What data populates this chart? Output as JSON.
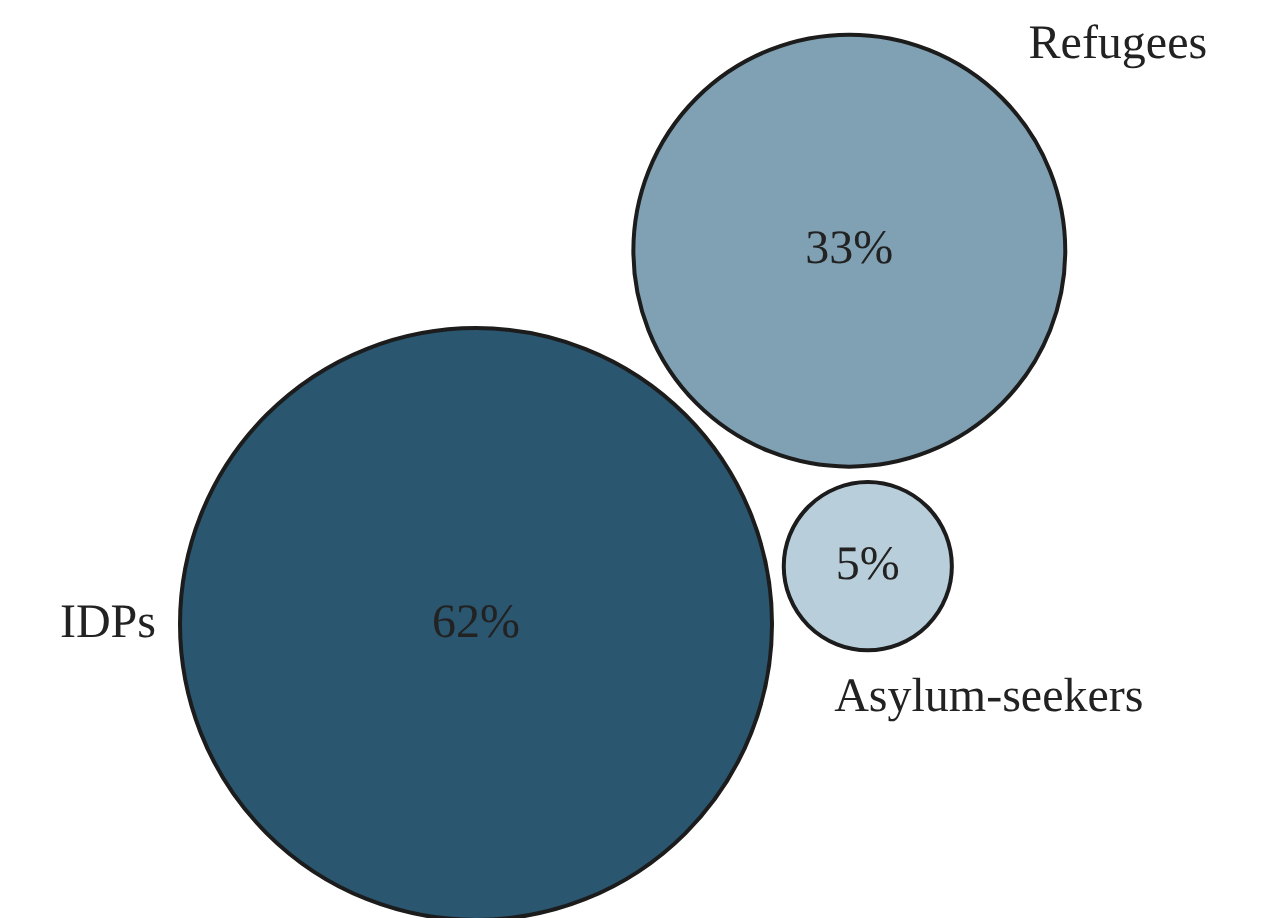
{
  "chart_data": {
    "type": "other",
    "categories": [
      "IDPs",
      "Refugees",
      "Asylum-seekers"
    ],
    "values": [
      62,
      33,
      5
    ],
    "value_labels": [
      "62%",
      "33%",
      "5%"
    ],
    "colors": [
      "#2a5670",
      "#7fa1b3",
      "#b8cedb"
    ]
  }
}
